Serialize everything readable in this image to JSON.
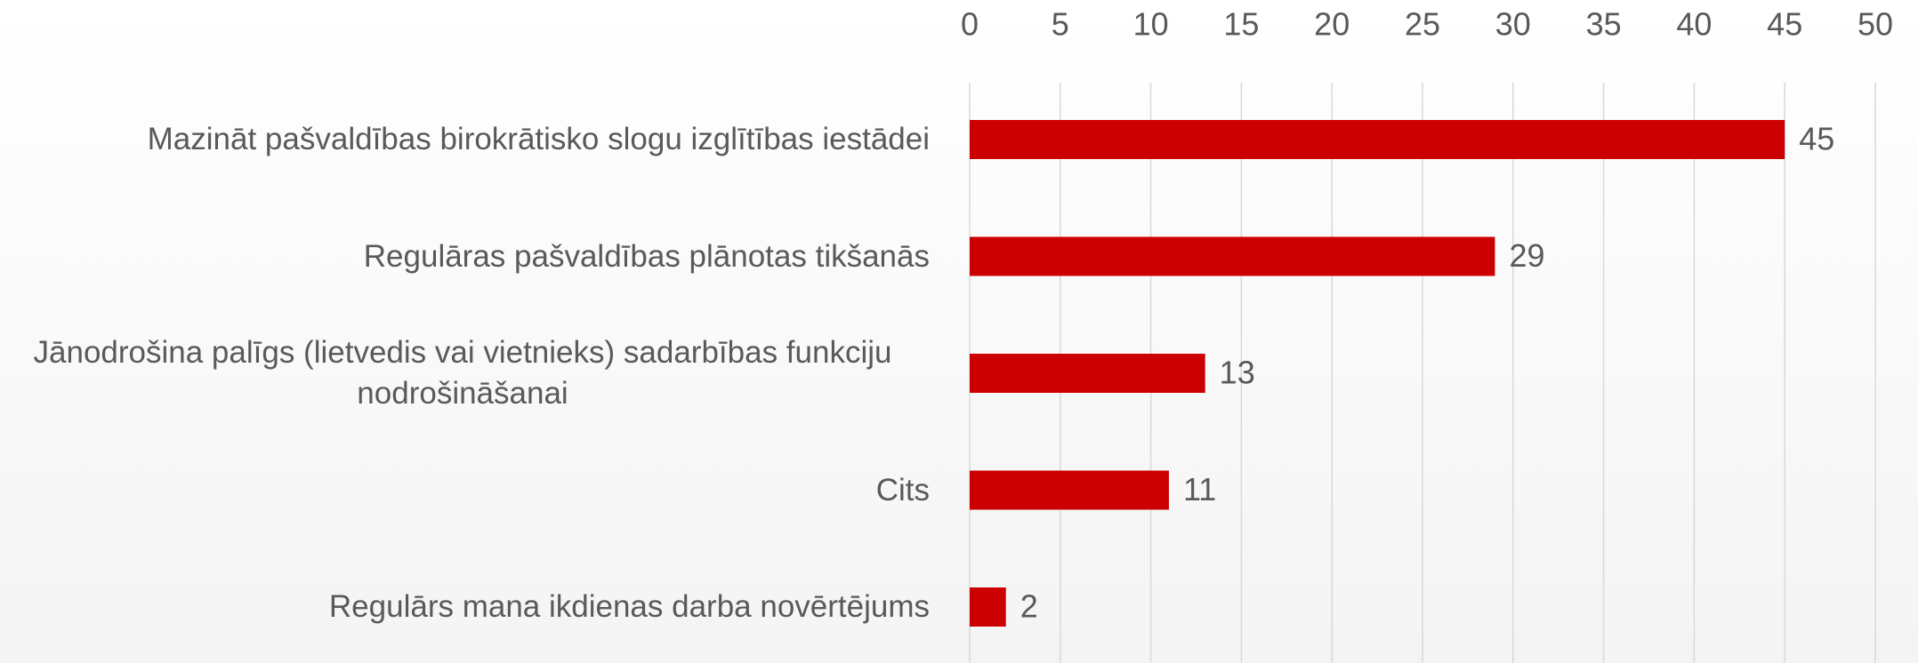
{
  "chart_data": {
    "type": "bar",
    "orientation": "horizontal",
    "categories": [
      "Mazināt pašvaldības birokrātisko slogu izglītības iestādei",
      "Regulāras pašvaldības plānotas tikšanās",
      "Jānodrošina palīgs (lietvedis vai vietnieks) sadarbības funkciju nodrošināšanai",
      "Cits",
      "Regulārs mana ikdienas darba novērtējums"
    ],
    "values": [
      45,
      29,
      13,
      11,
      2
    ],
    "color": "#cc0000",
    "xlim": [
      0,
      50
    ],
    "xticks": [
      0,
      5,
      10,
      15,
      20,
      25,
      30,
      35,
      40,
      45,
      50
    ],
    "grid": true
  }
}
